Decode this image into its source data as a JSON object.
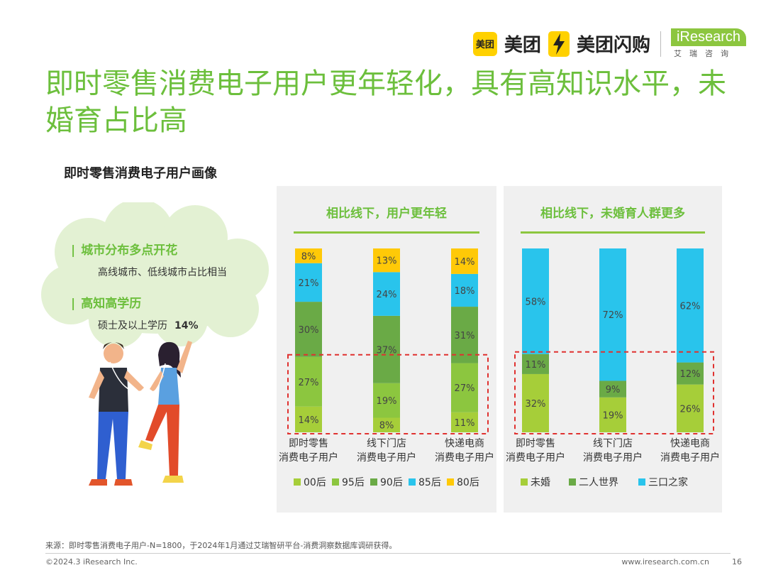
{
  "logos": {
    "meituan_badge": "美团",
    "meituan": "美团",
    "shangou": "美团闪购",
    "iresearch": "iResearch",
    "iresearch_cn": "艾瑞咨询"
  },
  "title": "即时零售消费电子用户更年轻化，具有高知识水平，未婚育占比高",
  "subtitle": "即时零售消费电子用户画像",
  "highlights": [
    {
      "head": "城市分布多点开花",
      "text": "高线城市、低线城市占比相当",
      "value": ""
    },
    {
      "head": "高知高学历",
      "text": "硕士及以上学历",
      "value": "14%"
    }
  ],
  "chart_data": [
    {
      "type": "bar",
      "stacked": true,
      "title": "相比线下，用户更年轻",
      "categories": [
        "即时零售\n消费电子用户",
        "线下门店\n消费电子用户",
        "快递电商\n消费电子用户"
      ],
      "series": [
        {
          "name": "00后",
          "color": "#a6ce39",
          "values": [
            14,
            8,
            11
          ]
        },
        {
          "name": "95后",
          "color": "#8cc63f",
          "values": [
            27,
            19,
            27
          ]
        },
        {
          "name": "90后",
          "color": "#6aaa46",
          "values": [
            30,
            37,
            31
          ]
        },
        {
          "name": "85后",
          "color": "#29c4ec",
          "values": [
            21,
            24,
            18
          ]
        },
        {
          "name": "80后",
          "color": "#ffc907",
          "values": [
            8,
            13,
            14
          ]
        }
      ],
      "legend": "bottom",
      "highlight_series": [
        "00后",
        "95后"
      ]
    },
    {
      "type": "bar",
      "stacked": true,
      "title": "相比线下，未婚育人群更多",
      "categories": [
        "即时零售\n消费电子用户",
        "线下门店\n消费电子用户",
        "快递电商\n消费电子用户"
      ],
      "series": [
        {
          "name": "未婚",
          "color": "#a6ce39",
          "values": [
            32,
            19,
            26
          ]
        },
        {
          "name": "二人世界",
          "color": "#6aaa46",
          "values": [
            11,
            9,
            12
          ]
        },
        {
          "name": "三口之家",
          "color": "#29c4ec",
          "values": [
            58,
            72,
            62
          ]
        }
      ],
      "legend": "bottom",
      "highlight_series": [
        "未婚",
        "二人世界"
      ]
    }
  ],
  "footer": {
    "source": "来源：即时零售消费电子用户-N=1800，于2024年1月通过艾瑞智研平台-消费洞察数据库调研获得。",
    "copyright": "©2024.3 iResearch Inc.",
    "website": "www.iresearch.com.cn",
    "page": "16"
  }
}
